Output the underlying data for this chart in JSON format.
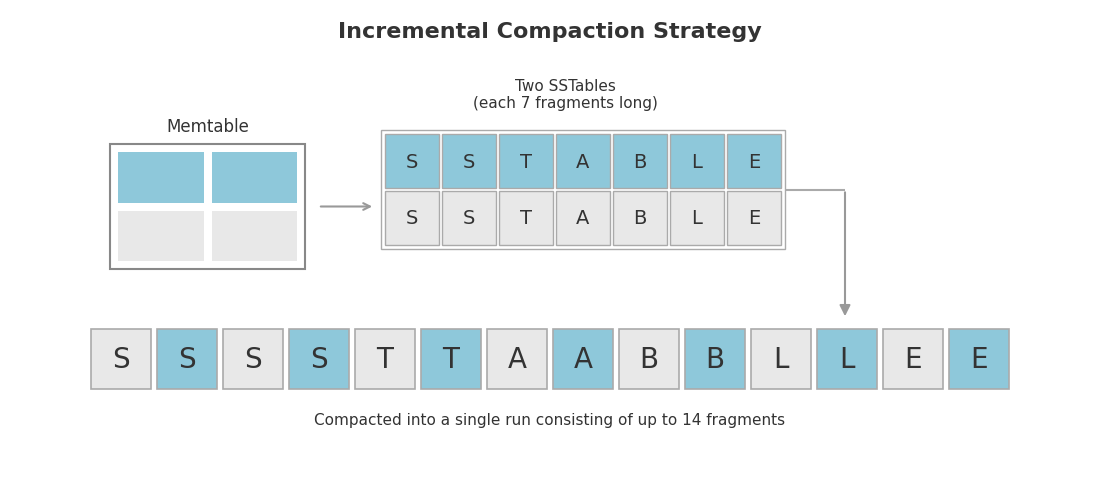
{
  "title": "Incremental Compaction Strategy",
  "title_fontsize": 16,
  "background_color": "#ffffff",
  "blue_color": "#8ec8da",
  "gray_cell_color": "#e8e8e8",
  "border_color": "#aaaaaa",
  "text_color": "#333333",
  "memtable_label": "Memtable",
  "sstable_label": "Two SSTables\n(each 7 fragments long)",
  "bottom_label": "Compacted into a single run consisting of up to 14 fragments",
  "sstable_row1": [
    "S",
    "S",
    "T",
    "A",
    "B",
    "L",
    "E"
  ],
  "sstable_row1_colors": [
    "blue",
    "blue",
    "blue",
    "blue",
    "blue",
    "blue",
    "blue"
  ],
  "sstable_row2": [
    "S",
    "S",
    "T",
    "A",
    "B",
    "L",
    "E"
  ],
  "sstable_row2_colors": [
    "gray",
    "gray",
    "gray",
    "gray",
    "gray",
    "gray",
    "gray"
  ],
  "bottom_row": [
    "S",
    "S",
    "S",
    "S",
    "T",
    "T",
    "A",
    "A",
    "B",
    "B",
    "L",
    "L",
    "E",
    "E"
  ],
  "bottom_row_colors": [
    "gray",
    "blue",
    "gray",
    "blue",
    "gray",
    "blue",
    "gray",
    "blue",
    "gray",
    "blue",
    "gray",
    "blue",
    "gray",
    "blue"
  ]
}
